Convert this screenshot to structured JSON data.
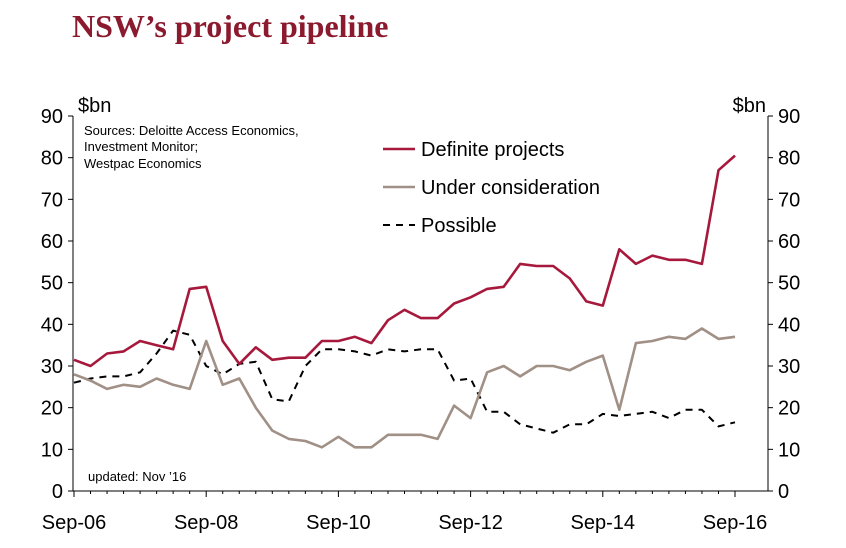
{
  "title": "NSW’s project pipeline",
  "chart_data": {
    "type": "line",
    "title": "NSW’s project pipeline",
    "ylabel_left": "$bn",
    "ylabel_right": "$bn",
    "ylim": [
      0,
      90
    ],
    "yticks": [
      0,
      10,
      20,
      30,
      40,
      50,
      60,
      70,
      80,
      90
    ],
    "xlim": [
      0,
      40
    ],
    "xticks": [
      {
        "x": 0,
        "label": "Sep-06"
      },
      {
        "x": 8,
        "label": "Sep-08"
      },
      {
        "x": 16,
        "label": "Sep-10"
      },
      {
        "x": 24,
        "label": "Sep-12"
      },
      {
        "x": 32,
        "label": "Sep-14"
      },
      {
        "x": 40,
        "label": "Sep-16"
      }
    ],
    "grid": false,
    "legend": "top-right",
    "source_note": [
      "Sources: Deloitte Access Economics,",
      "Investment Monitor;",
      "Westpac Economics"
    ],
    "updated_note": "updated:  Nov ’16",
    "series": [
      {
        "name": "Definite projects",
        "color": "#a6193c",
        "style": "solid",
        "x": [
          0,
          1,
          2,
          3,
          4,
          5,
          6,
          7,
          8,
          9,
          10,
          11,
          12,
          13,
          14,
          15,
          16,
          17,
          18,
          19,
          20,
          21,
          22,
          23,
          24,
          25,
          26,
          27,
          28,
          29,
          30,
          31,
          32,
          33,
          34,
          35,
          36,
          37,
          38,
          39,
          40
        ],
        "y": [
          31.5,
          30,
          33,
          33.5,
          36,
          35,
          34,
          48.5,
          49,
          36,
          30.5,
          34.5,
          31.5,
          32,
          32,
          36,
          36,
          37,
          35.5,
          41,
          43.5,
          41.5,
          41.5,
          45,
          46.5,
          48.5,
          49,
          54.5,
          54,
          54,
          51,
          45.5,
          44.5,
          58,
          54.5,
          56.5,
          55.5,
          55.5,
          54.5,
          77,
          80.5
        ]
      },
      {
        "name": "Under consideration",
        "color": "#a09086",
        "style": "solid",
        "x": [
          0,
          1,
          2,
          3,
          4,
          5,
          6,
          7,
          8,
          9,
          10,
          11,
          12,
          13,
          14,
          15,
          16,
          17,
          18,
          19,
          20,
          21,
          22,
          23,
          24,
          25,
          26,
          27,
          28,
          29,
          30,
          31,
          32,
          33,
          34,
          35,
          36,
          37,
          38,
          39,
          40
        ],
        "y": [
          28,
          26.5,
          24.5,
          25.5,
          25,
          27,
          25.5,
          24.5,
          36,
          25.5,
          27,
          20,
          14.5,
          12.5,
          12,
          10.5,
          13,
          10.5,
          10.5,
          13.5,
          13.5,
          13.5,
          12.5,
          20.5,
          17.5,
          28.5,
          30,
          27.5,
          30,
          30,
          29,
          31,
          32.5,
          19.5,
          35.5,
          36,
          37,
          36.5,
          39,
          36.5,
          37
        ]
      },
      {
        "name": "Possible",
        "color": "#000000",
        "style": "dashed",
        "x": [
          0,
          1,
          2,
          3,
          4,
          5,
          6,
          7,
          8,
          9,
          10,
          11,
          12,
          13,
          14,
          15,
          16,
          17,
          18,
          19,
          20,
          21,
          22,
          23,
          24,
          25,
          26,
          27,
          28,
          29,
          30,
          31,
          32,
          33,
          34,
          35,
          36,
          37,
          38,
          39,
          40
        ],
        "y": [
          26,
          27,
          27.5,
          27.5,
          28.5,
          33,
          38.5,
          37.5,
          30,
          28,
          30.5,
          31,
          22,
          21.5,
          30,
          34,
          34,
          33.5,
          32.5,
          34,
          33.5,
          34,
          34,
          26.5,
          27,
          19,
          19,
          16,
          15,
          14,
          16,
          16,
          18.5,
          18,
          18.5,
          19,
          17.5,
          19.5,
          19.5,
          15.5,
          16.5
        ]
      }
    ]
  }
}
